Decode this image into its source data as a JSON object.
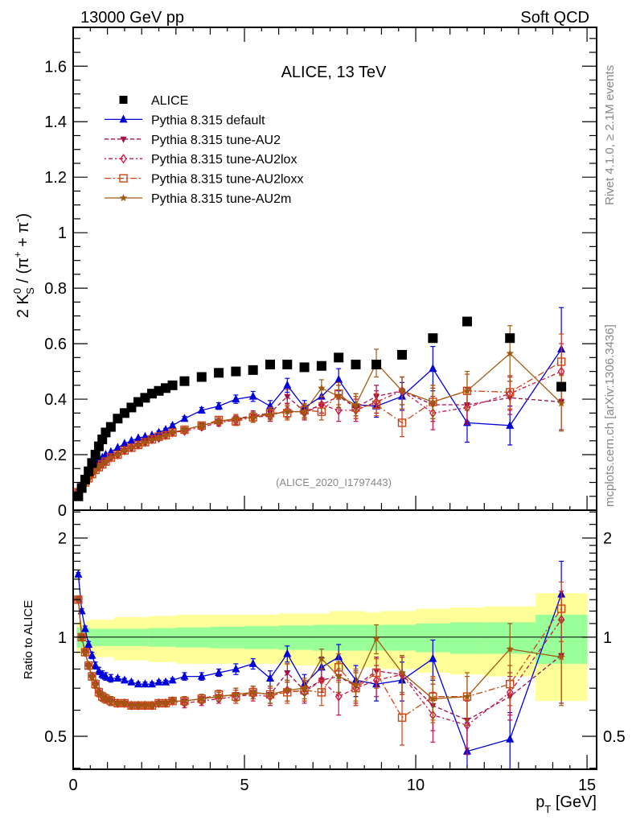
{
  "header": {
    "left": "13000 GeV pp",
    "right": "Soft QCD"
  },
  "side_labels": {
    "rivet": "Rivet 4.1.0, ≥ 2.1M events",
    "mcplots": "mcplots.cern.ch [arXiv:1306.3436]"
  },
  "chart_data": [
    {
      "type": "scatter",
      "panel": "main",
      "title": "ALICE, 13 TeV",
      "watermark": "(ALICE_2020_I1797443)",
      "xlabel": "p_T [GeV]",
      "ylabel": "2 K_S^0 / (π^+ + π^-)",
      "xlim": [
        0,
        15.28
      ],
      "ylim": [
        0,
        1.74
      ],
      "x_ticks": [
        0,
        5,
        10,
        15
      ],
      "y_ticks": [
        0,
        0.2,
        0.4,
        0.6,
        0.8,
        1,
        1.2,
        1.4,
        1.6
      ],
      "y_tick_labels": [
        "0",
        "0.2",
        "0.4",
        "0.6",
        "0.8",
        "1",
        "1.2",
        "1.4",
        "1.6"
      ],
      "legend_position": "top-left",
      "x": [
        0.15,
        0.25,
        0.35,
        0.45,
        0.55,
        0.65,
        0.75,
        0.85,
        0.95,
        1.1,
        1.3,
        1.5,
        1.7,
        1.9,
        2.1,
        2.3,
        2.5,
        2.7,
        2.9,
        3.25,
        3.75,
        4.25,
        4.75,
        5.25,
        5.75,
        6.25,
        6.75,
        7.25,
        7.75,
        8.25,
        8.85,
        9.6,
        10.5,
        11.5,
        12.75,
        14.25
      ],
      "series": [
        {
          "name": "ALICE",
          "color": "#000000",
          "marker": "square",
          "line": "none",
          "values": [
            0.05,
            0.08,
            0.11,
            0.14,
            0.17,
            0.2,
            0.23,
            0.255,
            0.28,
            0.3,
            0.33,
            0.35,
            0.37,
            0.39,
            0.405,
            0.42,
            0.43,
            0.44,
            0.45,
            0.465,
            0.48,
            0.495,
            0.5,
            0.505,
            0.525,
            0.525,
            0.515,
            0.52,
            0.55,
            0.525,
            0.525,
            0.56,
            0.62,
            0.68,
            0.62,
            0.445
          ],
          "errors": [
            0.005,
            0.005,
            0.005,
            0.005,
            0.005,
            0.005,
            0.005,
            0.005,
            0.005,
            0.005,
            0.005,
            0.005,
            0.005,
            0.005,
            0.005,
            0.005,
            0.005,
            0.005,
            0.005,
            0.005,
            0.005,
            0.005,
            0.005,
            0.005,
            0.005,
            0.005,
            0.005,
            0.005,
            0.005,
            0.005,
            0.005,
            0.005,
            0.005,
            0.005,
            0.005,
            0.005
          ]
        },
        {
          "name": "Pythia 8.315 default",
          "color": "#0000dd",
          "marker": "triangle-up",
          "line": "solid",
          "values": [
            0.075,
            0.095,
            0.115,
            0.135,
            0.152,
            0.165,
            0.178,
            0.19,
            0.2,
            0.21,
            0.225,
            0.24,
            0.25,
            0.26,
            0.265,
            0.27,
            0.28,
            0.29,
            0.305,
            0.33,
            0.36,
            0.375,
            0.4,
            0.41,
            0.375,
            0.45,
            0.37,
            0.41,
            0.47,
            0.38,
            0.375,
            0.41,
            0.51,
            0.315,
            0.305,
            0.58
          ],
          "errors": [
            0.003,
            0.003,
            0.003,
            0.003,
            0.003,
            0.003,
            0.003,
            0.003,
            0.003,
            0.003,
            0.003,
            0.003,
            0.004,
            0.004,
            0.004,
            0.004,
            0.005,
            0.005,
            0.006,
            0.008,
            0.01,
            0.012,
            0.015,
            0.018,
            0.02,
            0.025,
            0.025,
            0.03,
            0.04,
            0.04,
            0.04,
            0.05,
            0.08,
            0.07,
            0.07,
            0.15
          ]
        },
        {
          "name": "Pythia 8.315 tune-AU2",
          "color": "#a0104a",
          "marker": "triangle-down",
          "line": "dashed",
          "values": [
            0.065,
            0.08,
            0.1,
            0.115,
            0.13,
            0.145,
            0.155,
            0.165,
            0.175,
            0.19,
            0.2,
            0.215,
            0.225,
            0.235,
            0.245,
            0.255,
            0.26,
            0.27,
            0.28,
            0.29,
            0.305,
            0.32,
            0.33,
            0.34,
            0.35,
            0.41,
            0.355,
            0.38,
            0.41,
            0.37,
            0.41,
            0.43,
            0.38,
            0.38,
            0.405,
            0.39
          ],
          "errors": [
            0.003,
            0.003,
            0.003,
            0.003,
            0.003,
            0.003,
            0.003,
            0.003,
            0.003,
            0.003,
            0.003,
            0.003,
            0.004,
            0.004,
            0.004,
            0.004,
            0.005,
            0.005,
            0.006,
            0.008,
            0.01,
            0.012,
            0.015,
            0.018,
            0.02,
            0.025,
            0.025,
            0.03,
            0.04,
            0.04,
            0.04,
            0.05,
            0.06,
            0.06,
            0.06,
            0.1
          ]
        },
        {
          "name": "Pythia 8.315 tune-AU2lox",
          "color": "#cc1144",
          "marker": "diamond-open",
          "line": "dash-dot",
          "values": [
            0.065,
            0.08,
            0.1,
            0.115,
            0.13,
            0.145,
            0.155,
            0.165,
            0.175,
            0.19,
            0.2,
            0.215,
            0.225,
            0.235,
            0.245,
            0.255,
            0.26,
            0.27,
            0.28,
            0.285,
            0.3,
            0.315,
            0.325,
            0.335,
            0.34,
            0.36,
            0.35,
            0.38,
            0.36,
            0.36,
            0.39,
            0.43,
            0.35,
            0.37,
            0.42,
            0.5
          ],
          "errors": [
            0.003,
            0.003,
            0.003,
            0.003,
            0.003,
            0.003,
            0.003,
            0.003,
            0.003,
            0.003,
            0.003,
            0.003,
            0.004,
            0.004,
            0.004,
            0.004,
            0.005,
            0.005,
            0.006,
            0.008,
            0.01,
            0.012,
            0.015,
            0.018,
            0.02,
            0.025,
            0.025,
            0.03,
            0.04,
            0.04,
            0.04,
            0.05,
            0.06,
            0.06,
            0.06,
            0.1
          ]
        },
        {
          "name": "Pythia 8.315 tune-AU2loxx",
          "color": "#cc4411",
          "marker": "square-open",
          "line": "dash-dot-long",
          "values": [
            0.065,
            0.08,
            0.1,
            0.115,
            0.13,
            0.145,
            0.155,
            0.165,
            0.175,
            0.19,
            0.2,
            0.215,
            0.225,
            0.235,
            0.245,
            0.255,
            0.265,
            0.27,
            0.28,
            0.29,
            0.305,
            0.325,
            0.32,
            0.335,
            0.35,
            0.35,
            0.36,
            0.355,
            0.42,
            0.37,
            0.38,
            0.315,
            0.39,
            0.43,
            0.425,
            0.535
          ],
          "errors": [
            0.003,
            0.003,
            0.003,
            0.003,
            0.003,
            0.003,
            0.003,
            0.003,
            0.003,
            0.003,
            0.003,
            0.003,
            0.004,
            0.004,
            0.004,
            0.004,
            0.005,
            0.005,
            0.006,
            0.008,
            0.01,
            0.012,
            0.015,
            0.018,
            0.02,
            0.025,
            0.025,
            0.03,
            0.04,
            0.04,
            0.04,
            0.05,
            0.06,
            0.06,
            0.06,
            0.1
          ]
        },
        {
          "name": "Pythia 8.315 tune-AU2m",
          "color": "#a05a10",
          "marker": "star",
          "line": "solid",
          "values": [
            0.065,
            0.08,
            0.1,
            0.115,
            0.13,
            0.145,
            0.155,
            0.165,
            0.175,
            0.19,
            0.2,
            0.215,
            0.225,
            0.235,
            0.245,
            0.255,
            0.26,
            0.27,
            0.28,
            0.29,
            0.305,
            0.32,
            0.33,
            0.335,
            0.345,
            0.355,
            0.355,
            0.44,
            0.41,
            0.38,
            0.53,
            0.43,
            0.39,
            0.43,
            0.565,
            0.385
          ],
          "errors": [
            0.003,
            0.003,
            0.003,
            0.003,
            0.003,
            0.003,
            0.003,
            0.003,
            0.003,
            0.003,
            0.003,
            0.003,
            0.004,
            0.004,
            0.004,
            0.004,
            0.005,
            0.005,
            0.006,
            0.008,
            0.01,
            0.012,
            0.015,
            0.018,
            0.02,
            0.025,
            0.025,
            0.03,
            0.04,
            0.04,
            0.05,
            0.05,
            0.06,
            0.07,
            0.1,
            0.1
          ]
        }
      ]
    },
    {
      "type": "scatter",
      "panel": "ratio",
      "xlabel": "p_T [GeV]",
      "ylabel": "Ratio to ALICE",
      "xlim": [
        0,
        15.28
      ],
      "ylim": [
        0.397,
        2.43
      ],
      "y_scale": "log",
      "x_ticks": [
        0,
        5,
        10,
        15
      ],
      "x_tick_labels": [
        "0",
        "5",
        "10",
        "15"
      ],
      "y_ticks": [
        0.5,
        1,
        2
      ],
      "y_tick_labels": [
        "0.5",
        "1",
        "2"
      ],
      "reference_line": 1,
      "bands": {
        "edges": [
          0.1,
          0.2,
          0.3,
          0.5,
          1.2,
          2.2,
          3.0,
          4.0,
          5.0,
          6.0,
          7.0,
          7.5,
          8.5,
          9.0,
          10.0,
          11.0,
          12.0,
          13.5,
          15.0
        ],
        "stat_color": "#99ff99",
        "syst_color": "#ffff99",
        "stat_half_width": [
          0.07,
          0.07,
          0.07,
          0.06,
          0.06,
          0.065,
          0.07,
          0.075,
          0.08,
          0.085,
          0.09,
          0.09,
          0.09,
          0.09,
          0.1,
          0.11,
          0.11,
          0.17
        ],
        "total_half_width": [
          0.11,
          0.11,
          0.12,
          0.13,
          0.15,
          0.16,
          0.17,
          0.17,
          0.17,
          0.18,
          0.18,
          0.2,
          0.19,
          0.2,
          0.22,
          0.23,
          0.24,
          0.36
        ]
      },
      "series": [
        {
          "name": "Pythia 8.315 default",
          "values": [
            1.55,
            1.2,
            1.06,
            0.95,
            0.88,
            0.82,
            0.79,
            0.77,
            0.76,
            0.75,
            0.75,
            0.74,
            0.73,
            0.72,
            0.72,
            0.72,
            0.73,
            0.73,
            0.74,
            0.76,
            0.76,
            0.78,
            0.8,
            0.83,
            0.75,
            0.89,
            0.72,
            0.81,
            0.87,
            0.74,
            0.72,
            0.74,
            0.86,
            0.45,
            0.49,
            1.35
          ],
          "errors": [
            0.02,
            0.02,
            0.02,
            0.02,
            0.02,
            0.02,
            0.02,
            0.02,
            0.02,
            0.02,
            0.01,
            0.01,
            0.01,
            0.01,
            0.01,
            0.01,
            0.01,
            0.01,
            0.01,
            0.02,
            0.02,
            0.02,
            0.03,
            0.03,
            0.04,
            0.05,
            0.05,
            0.06,
            0.08,
            0.08,
            0.08,
            0.1,
            0.12,
            0.1,
            0.1,
            0.35
          ]
        },
        {
          "name": "Pythia 8.315 tune-AU2",
          "values": [
            1.3,
            1.0,
            0.9,
            0.82,
            0.76,
            0.72,
            0.68,
            0.66,
            0.65,
            0.64,
            0.63,
            0.63,
            0.62,
            0.62,
            0.62,
            0.62,
            0.63,
            0.63,
            0.64,
            0.64,
            0.65,
            0.66,
            0.67,
            0.68,
            0.67,
            0.78,
            0.69,
            0.74,
            0.76,
            0.71,
            0.79,
            0.77,
            0.62,
            0.56,
            0.66,
            0.88
          ],
          "errors": [
            0.02,
            0.02,
            0.02,
            0.02,
            0.02,
            0.02,
            0.02,
            0.02,
            0.02,
            0.02,
            0.01,
            0.01,
            0.01,
            0.01,
            0.01,
            0.01,
            0.01,
            0.01,
            0.01,
            0.02,
            0.02,
            0.02,
            0.03,
            0.03,
            0.04,
            0.05,
            0.05,
            0.06,
            0.08,
            0.08,
            0.08,
            0.1,
            0.1,
            0.1,
            0.1,
            0.25
          ]
        },
        {
          "name": "Pythia 8.315 tune-AU2lox",
          "values": [
            1.3,
            1.0,
            0.9,
            0.82,
            0.76,
            0.72,
            0.68,
            0.66,
            0.65,
            0.64,
            0.63,
            0.63,
            0.62,
            0.62,
            0.62,
            0.62,
            0.63,
            0.63,
            0.64,
            0.63,
            0.64,
            0.65,
            0.66,
            0.67,
            0.66,
            0.69,
            0.68,
            0.74,
            0.66,
            0.7,
            0.74,
            0.77,
            0.58,
            0.54,
            0.68,
            1.13
          ],
          "errors": [
            0.02,
            0.02,
            0.02,
            0.02,
            0.02,
            0.02,
            0.02,
            0.02,
            0.02,
            0.02,
            0.01,
            0.01,
            0.01,
            0.01,
            0.01,
            0.01,
            0.01,
            0.01,
            0.01,
            0.02,
            0.02,
            0.02,
            0.03,
            0.03,
            0.04,
            0.05,
            0.05,
            0.06,
            0.08,
            0.08,
            0.08,
            0.1,
            0.1,
            0.1,
            0.1,
            0.25
          ]
        },
        {
          "name": "Pythia 8.315 tune-AU2loxx",
          "values": [
            1.3,
            1.0,
            0.9,
            0.82,
            0.76,
            0.72,
            0.68,
            0.66,
            0.65,
            0.64,
            0.63,
            0.63,
            0.62,
            0.62,
            0.62,
            0.62,
            0.63,
            0.63,
            0.64,
            0.64,
            0.65,
            0.67,
            0.66,
            0.68,
            0.67,
            0.68,
            0.69,
            0.68,
            0.81,
            0.7,
            0.78,
            0.57,
            0.66,
            0.66,
            0.72,
            1.22
          ],
          "errors": [
            0.02,
            0.02,
            0.02,
            0.02,
            0.02,
            0.02,
            0.02,
            0.02,
            0.02,
            0.02,
            0.01,
            0.01,
            0.01,
            0.01,
            0.01,
            0.01,
            0.01,
            0.01,
            0.01,
            0.02,
            0.02,
            0.02,
            0.03,
            0.03,
            0.04,
            0.05,
            0.05,
            0.06,
            0.08,
            0.08,
            0.08,
            0.1,
            0.1,
            0.1,
            0.1,
            0.25
          ]
        },
        {
          "name": "Pythia 8.315 tune-AU2m",
          "values": [
            1.3,
            1.0,
            0.9,
            0.82,
            0.76,
            0.72,
            0.68,
            0.66,
            0.65,
            0.64,
            0.63,
            0.63,
            0.62,
            0.62,
            0.62,
            0.62,
            0.63,
            0.63,
            0.64,
            0.64,
            0.65,
            0.66,
            0.67,
            0.68,
            0.67,
            0.69,
            0.7,
            0.86,
            0.76,
            0.72,
            0.99,
            0.78,
            0.65,
            0.66,
            0.92,
            0.87
          ],
          "errors": [
            0.02,
            0.02,
            0.02,
            0.02,
            0.02,
            0.02,
            0.02,
            0.02,
            0.02,
            0.02,
            0.01,
            0.01,
            0.01,
            0.01,
            0.01,
            0.01,
            0.01,
            0.01,
            0.01,
            0.02,
            0.02,
            0.02,
            0.03,
            0.03,
            0.04,
            0.05,
            0.05,
            0.06,
            0.08,
            0.08,
            0.1,
            0.1,
            0.1,
            0.12,
            0.18,
            0.25
          ]
        }
      ]
    }
  ]
}
